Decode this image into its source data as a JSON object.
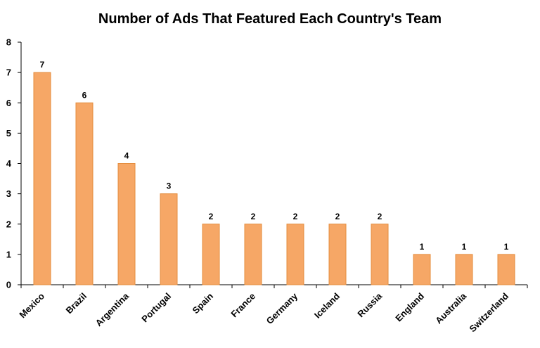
{
  "chart_data": {
    "type": "bar",
    "title": "Number of Ads That Featured Each Country's Team",
    "xlabel": "",
    "ylabel": "",
    "categories": [
      "Mexico",
      "Brazil",
      "Argentina",
      "Portugal",
      "Spain",
      "France",
      "Germany",
      "Iceland",
      "Russia",
      "England",
      "Australia",
      "Switzerland"
    ],
    "values": [
      7,
      6,
      4,
      3,
      2,
      2,
      2,
      2,
      2,
      1,
      1,
      1
    ],
    "data_labels": [
      "7",
      "6",
      "4",
      "3",
      "2",
      "2",
      "2",
      "2",
      "2",
      "1",
      "1",
      "1"
    ],
    "ylim": [
      0,
      8
    ],
    "yticks": [
      "0",
      "1",
      "2",
      "3",
      "4",
      "5",
      "6",
      "7",
      "8"
    ],
    "grid": false,
    "legend": "none",
    "colors": {
      "bar": "#f6a766",
      "bar_edge": "#e48d3e"
    }
  }
}
